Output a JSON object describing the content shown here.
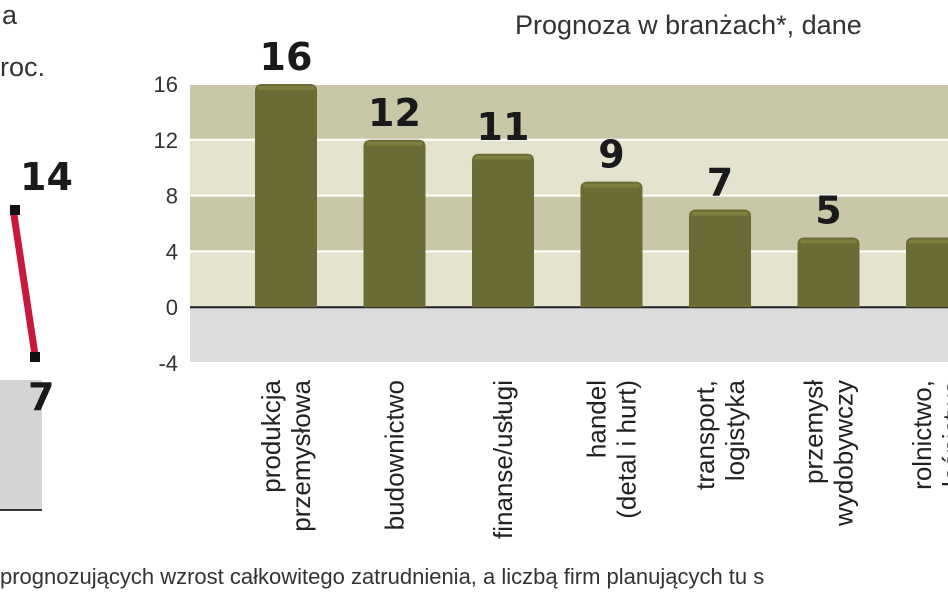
{
  "left_panel": {
    "label_top": "a",
    "label_second": "roc.",
    "marker_high_label": "14",
    "marker_low_label": "7"
  },
  "footer": {
    "text": "prognozujących wzrost całkowitego zatrudnienia, a liczbą firm planujących tu s"
  },
  "colors": {
    "bar": "#6b6b35",
    "bar_highlight": "#8a8a4a",
    "band_light": "#e3e3cf",
    "band_dark": "#c8c8a8",
    "plot_bg": "#dcdcdc",
    "accent_line": "#c8183c"
  },
  "chart_data": {
    "type": "bar",
    "title": "Prognoza w branżach*, dane",
    "categories": [
      [
        "produkcja",
        "przemysłowa"
      ],
      [
        "budownictwo"
      ],
      [
        "finanse/usługi"
      ],
      [
        "handel",
        "(detal i hurt)"
      ],
      [
        "transport,",
        "logistyka"
      ],
      [
        "przemysł",
        "wydobywczy"
      ],
      [
        "rolnictwo,",
        "leśnictwo"
      ]
    ],
    "values": [
      16,
      12,
      11,
      9,
      7,
      5,
      5
    ],
    "value_labels": [
      "16",
      "12",
      "11",
      "9",
      "7",
      "5",
      ""
    ],
    "yticks": [
      "16",
      "12",
      "8",
      "4",
      "0",
      "-4"
    ],
    "ylim": [
      -4,
      16
    ],
    "grid": true,
    "xlabel": "",
    "ylabel": ""
  }
}
